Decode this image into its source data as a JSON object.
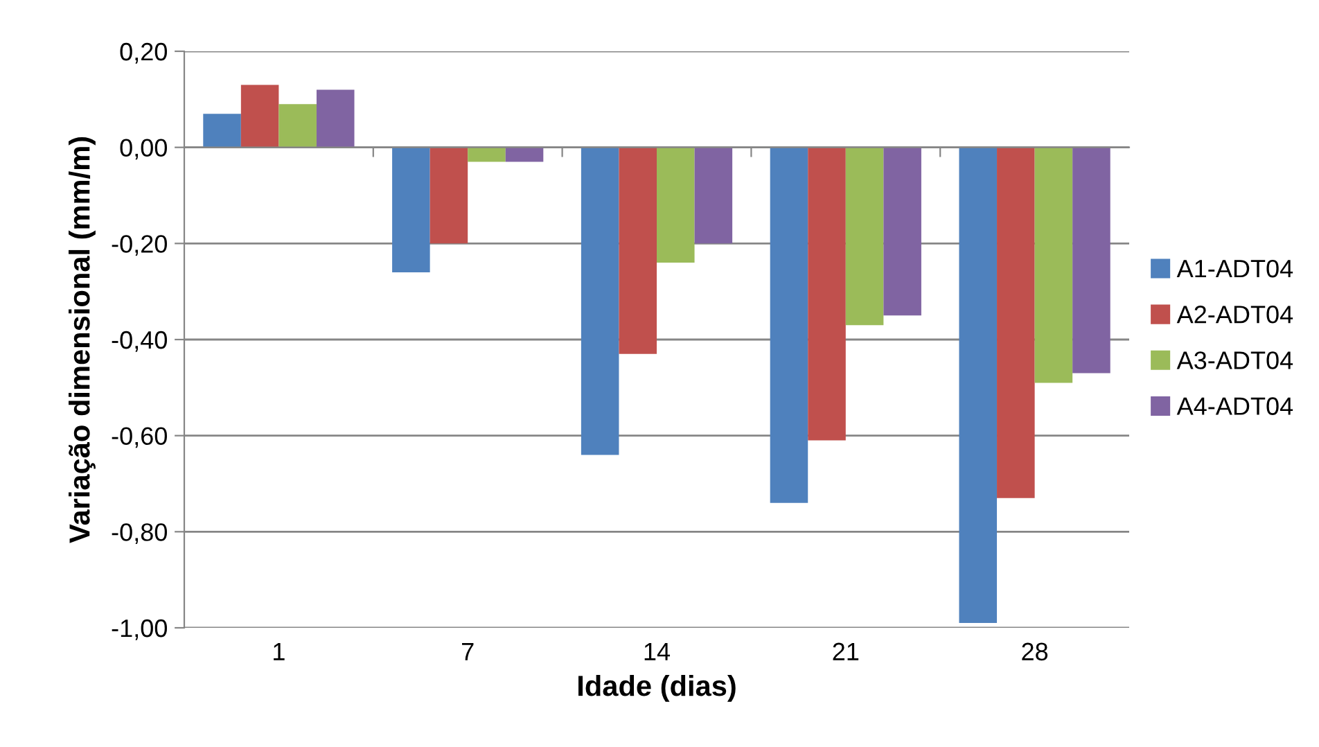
{
  "chart_data": {
    "type": "bar",
    "xlabel": "Idade (dias)",
    "ylabel": "Variação dimensional (mm/m)",
    "categories": [
      "1",
      "7",
      "14",
      "21",
      "28"
    ],
    "series": [
      {
        "name": "A1-ADT04",
        "color": "#4f81bd",
        "values": [
          0.07,
          -0.26,
          -0.64,
          -0.74,
          -0.99
        ]
      },
      {
        "name": "A2-ADT04",
        "color": "#c0504d",
        "values": [
          0.13,
          -0.2,
          -0.43,
          -0.61,
          -0.73
        ]
      },
      {
        "name": "A3-ADT04",
        "color": "#9bbb59",
        "values": [
          0.09,
          -0.03,
          -0.24,
          -0.37,
          -0.49
        ]
      },
      {
        "name": "A4-ADT04",
        "color": "#8064a2",
        "values": [
          0.12,
          -0.03,
          -0.2,
          -0.35,
          -0.47
        ]
      }
    ],
    "ylim": [
      -1.0,
      0.2
    ],
    "yticks": [
      {
        "value": -1.0,
        "label": "-1,00"
      },
      {
        "value": -0.8,
        "label": "-0,80"
      },
      {
        "value": -0.6,
        "label": "-0,60"
      },
      {
        "value": -0.4,
        "label": "-0,40"
      },
      {
        "value": -0.2,
        "label": "-0,20"
      },
      {
        "value": 0.0,
        "label": "0,00"
      },
      {
        "value": 0.2,
        "label": "0,20"
      }
    ],
    "grid": "y",
    "legend": "right"
  }
}
